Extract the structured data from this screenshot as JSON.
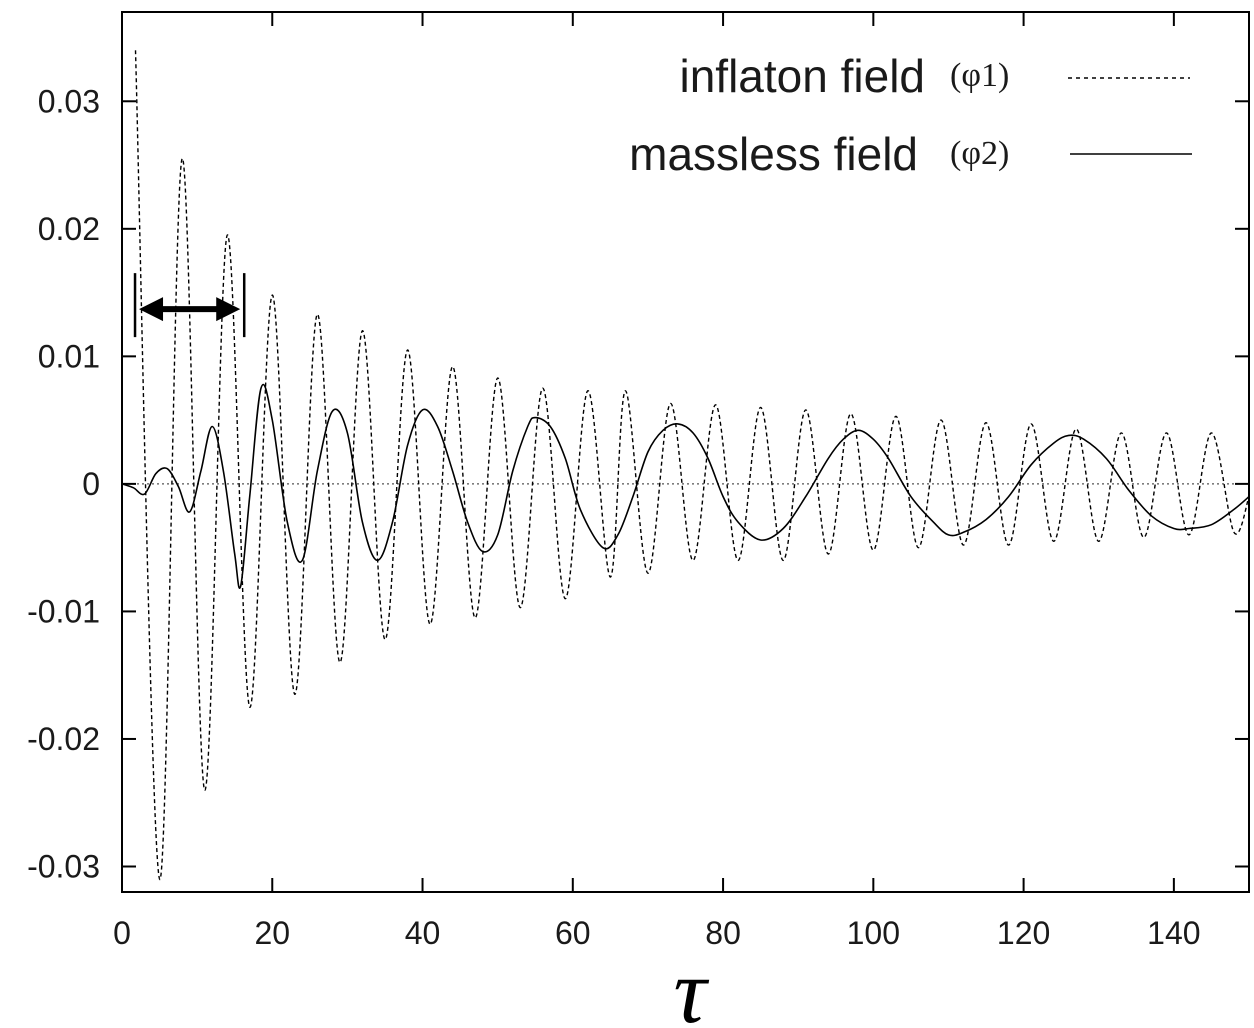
{
  "chart_data": {
    "type": "line",
    "title": "",
    "xlabel": "τ",
    "ylabel": "",
    "xlim": [
      0,
      150
    ],
    "ylim": [
      -0.032,
      0.037
    ],
    "xticks": [
      "0",
      "20",
      "40",
      "60",
      "80",
      "100",
      "120",
      "140"
    ],
    "yticks": [
      "0.03",
      "0.02",
      "0.01",
      "0",
      "-0.01",
      "-0.02",
      "-0.03"
    ],
    "grid": false,
    "legend_position": "top-right",
    "zero_line": true,
    "series": [
      {
        "name": "inflaton field",
        "symbol": "(φ1)",
        "style": "dashed",
        "color": "#000000",
        "points": [
          [
            1.8,
            0.034
          ],
          [
            5,
            -0.031
          ],
          [
            8,
            0.0255
          ],
          [
            11,
            -0.024
          ],
          [
            14,
            0.0195
          ],
          [
            17,
            -0.0175
          ],
          [
            20,
            0.0148
          ],
          [
            23,
            -0.0165
          ],
          [
            26,
            0.0133
          ],
          [
            29,
            -0.014
          ],
          [
            32,
            0.012
          ],
          [
            35,
            -0.0122
          ],
          [
            38,
            0.0105
          ],
          [
            41,
            -0.011
          ],
          [
            44,
            0.0092
          ],
          [
            47,
            -0.0105
          ],
          [
            50,
            0.0083
          ],
          [
            53,
            -0.0097
          ],
          [
            56,
            0.0075
          ],
          [
            59,
            -0.009
          ],
          [
            62,
            0.0073
          ],
          [
            65,
            -0.0073
          ],
          [
            67,
            0.0073
          ],
          [
            70,
            -0.007
          ],
          [
            73,
            0.0063
          ],
          [
            76,
            -0.006
          ],
          [
            79,
            0.0062
          ],
          [
            82,
            -0.006
          ],
          [
            85,
            0.006
          ],
          [
            88,
            -0.006
          ],
          [
            91,
            0.0058
          ],
          [
            94,
            -0.0055
          ],
          [
            97,
            0.0055
          ],
          [
            100,
            -0.0052
          ],
          [
            103,
            0.0053
          ],
          [
            106,
            -0.005
          ],
          [
            109,
            0.005
          ],
          [
            112,
            -0.0048
          ],
          [
            115,
            0.0048
          ],
          [
            118,
            -0.0048
          ],
          [
            121,
            0.0047
          ],
          [
            124,
            -0.0045
          ],
          [
            127,
            0.0043
          ],
          [
            130,
            -0.0045
          ],
          [
            133,
            0.004
          ],
          [
            136,
            -0.0042
          ],
          [
            139,
            0.004
          ],
          [
            142,
            -0.004
          ],
          [
            145,
            0.004
          ],
          [
            148,
            -0.0038
          ],
          [
            150,
            -0.001
          ]
        ]
      },
      {
        "name": "massless field",
        "symbol": "(φ2)",
        "style": "solid",
        "color": "#000000",
        "points": [
          [
            0,
            0
          ],
          [
            1.5,
            -0.0003
          ],
          [
            3,
            -0.0008
          ],
          [
            4.5,
            0.0008
          ],
          [
            6,
            0.0012
          ],
          [
            7.5,
            -0.0002
          ],
          [
            9,
            -0.0022
          ],
          [
            10.5,
            0.001
          ],
          [
            12,
            0.0045
          ],
          [
            13.5,
            0.001
          ],
          [
            15,
            -0.0055
          ],
          [
            15.8,
            -0.008
          ],
          [
            17,
            -0.001
          ],
          [
            18.5,
            0.0075
          ],
          [
            20,
            0.005
          ],
          [
            22,
            -0.003
          ],
          [
            24,
            -0.006
          ],
          [
            26,
            0.001
          ],
          [
            28,
            0.0057
          ],
          [
            30,
            0.004
          ],
          [
            32,
            -0.003
          ],
          [
            34,
            -0.006
          ],
          [
            36,
            -0.003
          ],
          [
            38,
            0.003
          ],
          [
            40,
            0.0058
          ],
          [
            42,
            0.0045
          ],
          [
            44,
            0.001
          ],
          [
            46,
            -0.003
          ],
          [
            48,
            -0.0053
          ],
          [
            50,
            -0.004
          ],
          [
            52,
            0.001
          ],
          [
            54,
            0.0045
          ],
          [
            55,
            0.0052
          ],
          [
            57,
            0.0045
          ],
          [
            59,
            0.002
          ],
          [
            61,
            -0.002
          ],
          [
            64,
            -0.005
          ],
          [
            66,
            -0.004
          ],
          [
            68,
            -0.001
          ],
          [
            70,
            0.0025
          ],
          [
            72,
            0.0042
          ],
          [
            74,
            0.0047
          ],
          [
            76,
            0.004
          ],
          [
            78,
            0.002
          ],
          [
            80,
            -0.001
          ],
          [
            82,
            -0.003
          ],
          [
            85,
            -0.0044
          ],
          [
            88,
            -0.0035
          ],
          [
            91,
            -0.001
          ],
          [
            94,
            0.002
          ],
          [
            96,
            0.0035
          ],
          [
            98,
            0.0042
          ],
          [
            100,
            0.0035
          ],
          [
            102,
            0.002
          ],
          [
            105,
            -0.001
          ],
          [
            108,
            -0.003
          ],
          [
            110,
            -0.004
          ],
          [
            112,
            -0.0038
          ],
          [
            115,
            -0.0028
          ],
          [
            118,
            -0.001
          ],
          [
            121,
            0.0015
          ],
          [
            124,
            0.0032
          ],
          [
            126,
            0.0038
          ],
          [
            128,
            0.0035
          ],
          [
            131,
            0.002
          ],
          [
            134,
            -0.0005
          ],
          [
            137,
            -0.0025
          ],
          [
            140,
            -0.0035
          ],
          [
            142,
            -0.0035
          ],
          [
            145,
            -0.0032
          ],
          [
            148,
            -0.002
          ],
          [
            150,
            -0.001
          ]
        ]
      }
    ],
    "arrow_annotation": {
      "x_start": 2,
      "x_end": 16,
      "y": 0.0137
    }
  }
}
